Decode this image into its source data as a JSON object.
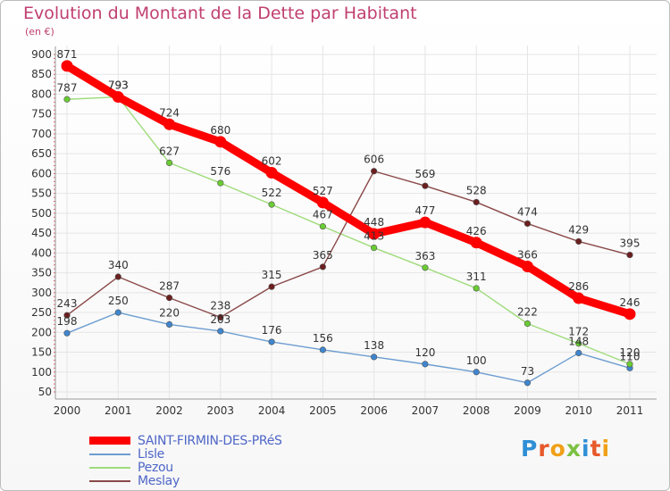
{
  "title": "Evolution du Montant de la Dette par Habitant",
  "subtitle": "(en €)",
  "logo": "Proxiti",
  "colors": {
    "title": "#c03f6f",
    "legend_text": "#4e66c7",
    "grid": "#e5e5e5",
    "axis": "#9a9a9a"
  },
  "chart_data": {
    "type": "line",
    "title": "Evolution du Montant de la Dette par Habitant",
    "subtitle": "(en €)",
    "xlabel": "",
    "ylabel": "",
    "x": [
      "2000",
      "2001",
      "2002",
      "2003",
      "2004",
      "2005",
      "2006",
      "2007",
      "2008",
      "2009",
      "2010",
      "2011"
    ],
    "ylim": [
      50,
      900
    ],
    "yticks": [
      50,
      100,
      150,
      200,
      250,
      300,
      350,
      400,
      450,
      500,
      550,
      600,
      650,
      700,
      750,
      800,
      850,
      900
    ],
    "grid": true,
    "legend_position": "bottom-left",
    "series": [
      {
        "name": "Lisle",
        "color": "#6c9dd0",
        "marker_color": "#3f86cf",
        "emphasis": false,
        "values": [
          198,
          250,
          220,
          203,
          176,
          156,
          138,
          120,
          100,
          73,
          148,
          110
        ],
        "labels": [
          "198",
          "250",
          "220",
          "203",
          "176",
          "156",
          "138",
          "120",
          "100",
          "73",
          "148",
          "110"
        ]
      },
      {
        "name": "Pezou",
        "color": "#9fdc7c",
        "marker_color": "#6acc33",
        "emphasis": false,
        "values": [
          787,
          793,
          627,
          576,
          522,
          467,
          413,
          363,
          311,
          222,
          172,
          120
        ],
        "labels": [
          "787",
          "793",
          "627",
          "576",
          "522",
          "467",
          "413",
          "363",
          "311",
          "222",
          "172",
          "120"
        ]
      },
      {
        "name": "Meslay",
        "color": "#8a4848",
        "marker_color": "#6b1f1f",
        "emphasis": false,
        "values": [
          243,
          340,
          287,
          238,
          315,
          365,
          606,
          569,
          528,
          474,
          429,
          395
        ],
        "labels": [
          "243",
          "340",
          "287",
          "238",
          "315",
          "365",
          "606",
          "569",
          "528",
          "474",
          "429",
          "395"
        ]
      },
      {
        "name": "SAINT-FIRMIN-DES-PRéS",
        "color": "#ff0000",
        "marker_color": "#ff0000",
        "emphasis": true,
        "values": [
          871,
          793,
          724,
          680,
          602,
          527,
          448,
          477,
          426,
          366,
          286,
          246
        ],
        "labels": [
          "871",
          "793",
          "724",
          "680",
          "602",
          "527",
          "448",
          "477",
          "426",
          "366",
          "286",
          "246"
        ]
      }
    ],
    "legend_order": [
      3,
      0,
      1,
      2
    ]
  }
}
